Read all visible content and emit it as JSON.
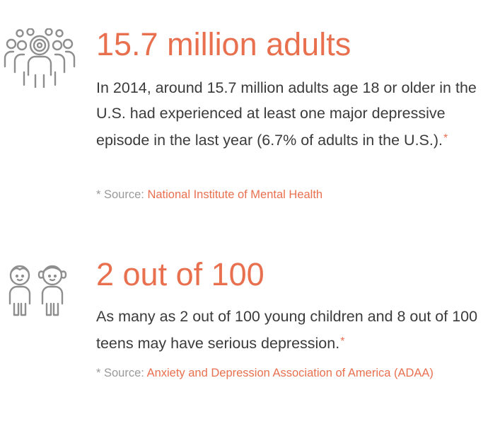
{
  "stats": [
    {
      "icon": "crowd-target-icon",
      "headline": "15.7 million adults",
      "body": "In 2014, around 15.7 million adults age 18 or older in the U.S. had experienced at least one major depressive episode in the last year (6.7% of adults in the U.S.).",
      "asterisk": "*",
      "source_prefix": "* Source:",
      "source_link": "National Institute of Mental Health"
    },
    {
      "icon": "two-children-icon",
      "headline": "2 out of 100",
      "body": "As many as 2 out of 100 young children and 8 out of 100 teens may have serious depression.",
      "asterisk": "*",
      "source_prefix": "* Source:",
      "source_link": "Anxiety and Depression Association of America (ADAA)"
    }
  ],
  "colors": {
    "accent": "#e8704f",
    "text": "#3b3b3b",
    "muted": "#9a9a9a",
    "icon": "#8e8e8e"
  }
}
